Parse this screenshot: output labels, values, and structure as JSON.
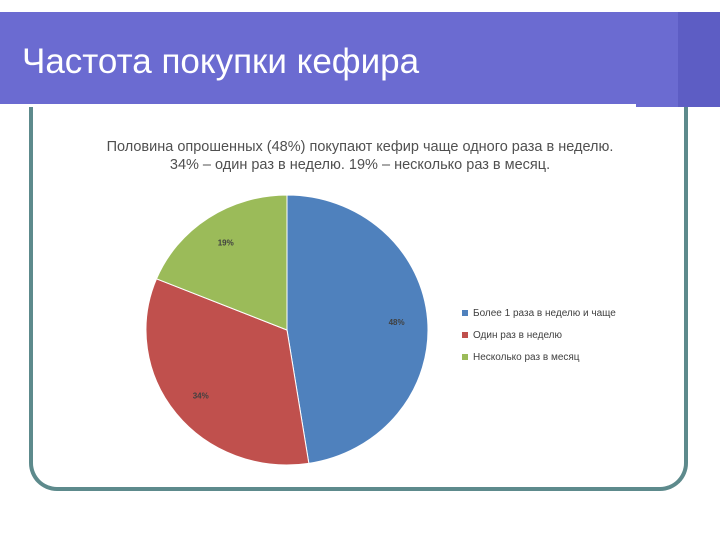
{
  "slide": {
    "title": "Частота покупки кефира"
  },
  "colors": {
    "header_bg": "#6b6bd1",
    "frame_border": "#5d8a8c",
    "series": [
      "#4f81bd",
      "#c0504d",
      "#9bbb59"
    ]
  },
  "chart_data": {
    "type": "pie",
    "title_lines": [
      "Половина опрошенных (48%) покупают кефир чаще одного раза в неделю.",
      "34% – один раз в неделю. 19% – несколько раз в месяц."
    ],
    "slices": [
      {
        "label": "Более 1 раза в неделю и чаще",
        "value": 48,
        "data_label": "48%",
        "color": "#4f81bd"
      },
      {
        "label": "Один раз в неделю",
        "value": 34,
        "data_label": "34%",
        "color": "#c0504d"
      },
      {
        "label": "Несколько раз в месяц",
        "value": 19,
        "data_label": "19%",
        "color": "#9bbb59"
      }
    ],
    "legend_position": "right",
    "start": "12 o'clock",
    "direction": "clockwise"
  }
}
